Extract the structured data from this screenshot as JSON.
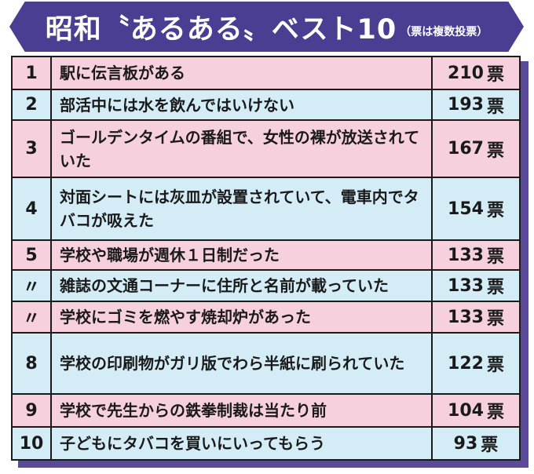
{
  "title": "昭和〝あるある〟ベスト10",
  "subtitle": "（票は複数投票）",
  "vote_unit": "票",
  "rows": [
    {
      "rank": "1",
      "text": "駅に伝言板がある",
      "votes": "210"
    },
    {
      "rank": "2",
      "text": "部活中には水を飲んではいけない",
      "votes": "193"
    },
    {
      "rank": "3",
      "text": "ゴールデンタイムの番組で、女性の裸が放送されていた",
      "votes": "167"
    },
    {
      "rank": "4",
      "text": "対面シートには灰皿が設置されていて、電車内でタバコが吸えた",
      "votes": "154"
    },
    {
      "rank": "5",
      "text": "学校や職場が週休１日制だった",
      "votes": "133"
    },
    {
      "rank": "〃",
      "text": "雑誌の文通コーナーに住所と名前が載っていた",
      "votes": "133"
    },
    {
      "rank": "〃",
      "text": "学校にゴミを燃やす焼却炉があった",
      "votes": "133"
    },
    {
      "rank": "8",
      "text": "学校の印刷物がガリ版でわら半紙に刷られていた",
      "votes": "122"
    },
    {
      "rank": "9",
      "text": "学校で先生からの鉄拳制裁は当たり前",
      "votes": "104"
    },
    {
      "rank": "10",
      "text": "子どもにタバコを買いにいってもらう",
      "votes": "93"
    }
  ],
  "colors": {
    "banner": "#4a3e93",
    "pink_row": "#f7d0dd",
    "blue_row": "#d3ecf6"
  }
}
